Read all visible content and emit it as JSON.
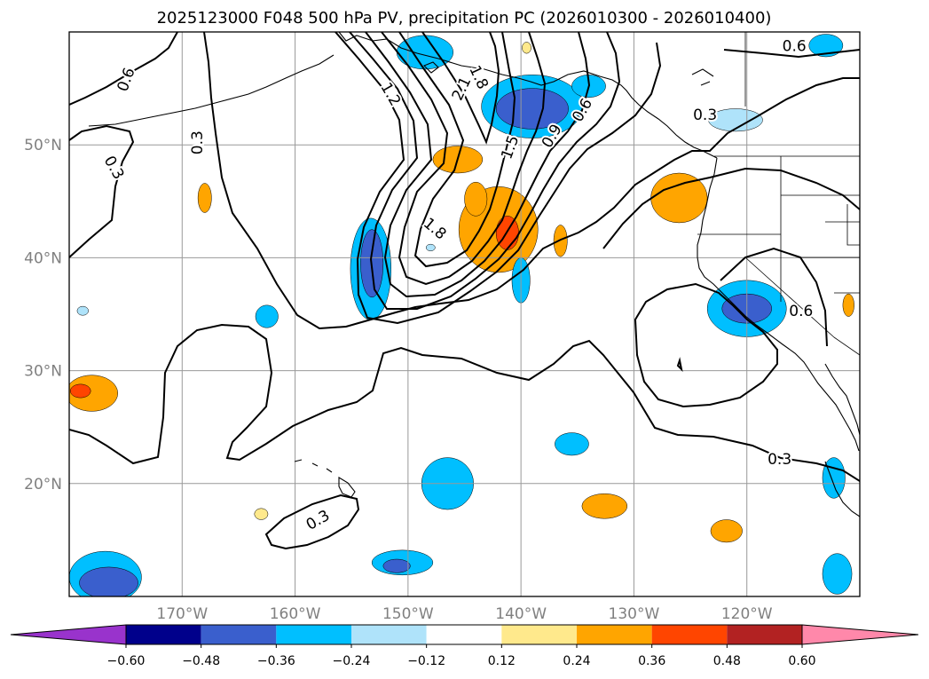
{
  "chart_data": {
    "type": "contour_map",
    "title": "2025123000 F048 500 hPa PV, precipitation PC (2026010300 - 2026010400)",
    "projection": "PlateCarree",
    "lon_range": [
      -180,
      -110
    ],
    "lat_range": [
      10,
      60
    ],
    "x_ticks": [
      {
        "lon": -170,
        "label": "170°W"
      },
      {
        "lon": -160,
        "label": "160°W"
      },
      {
        "lon": -150,
        "label": "150°W"
      },
      {
        "lon": -140,
        "label": "140°W"
      },
      {
        "lon": -130,
        "label": "130°W"
      },
      {
        "lon": -120,
        "label": "120°W"
      }
    ],
    "y_ticks": [
      {
        "lat": 20,
        "label": "20°N"
      },
      {
        "lat": 30,
        "label": "30°N"
      },
      {
        "lat": 40,
        "label": "40°N"
      },
      {
        "lat": 50,
        "label": "50°N"
      }
    ],
    "grid": true,
    "pv_contour_levels": [
      0.3,
      0.6,
      0.9,
      1.2,
      1.5,
      1.8,
      2.1
    ],
    "pv_contour_labels": [
      {
        "text": "0.6",
        "lon": -175.0,
        "lat": 55.8,
        "rot": -70
      },
      {
        "text": "0.3",
        "lon": -168.7,
        "lat": 50.2,
        "rot": -90
      },
      {
        "text": "0.3",
        "lon": -176.0,
        "lat": 48.0,
        "rot": 60
      },
      {
        "text": "1.2",
        "lon": -151.5,
        "lat": 54.5,
        "rot": 60
      },
      {
        "text": "2.1",
        "lon": -145.3,
        "lat": 55.0,
        "rot": -65
      },
      {
        "text": "1.8",
        "lon": -143.7,
        "lat": 56.0,
        "rot": 65
      },
      {
        "text": "1.5",
        "lon": -141.0,
        "lat": 49.8,
        "rot": -70
      },
      {
        "text": "0.9",
        "lon": -137.3,
        "lat": 50.8,
        "rot": -60
      },
      {
        "text": "0.6",
        "lon": -134.6,
        "lat": 53.1,
        "rot": -60
      },
      {
        "text": "1.8",
        "lon": -147.6,
        "lat": 42.6,
        "rot": 40
      },
      {
        "text": "0.3",
        "lon": -123.7,
        "lat": 52.7,
        "rot": 0
      },
      {
        "text": "0.6",
        "lon": -115.8,
        "lat": 58.8,
        "rot": 0
      },
      {
        "text": "0.6",
        "lon": -115.2,
        "lat": 35.3,
        "rot": 0
      },
      {
        "text": "0.3",
        "lon": -117.1,
        "lat": 22.2,
        "rot": 0
      },
      {
        "text": "0.3",
        "lon": -158.0,
        "lat": 16.8,
        "rot": -30
      }
    ],
    "precip_pc_blobs": [
      {
        "lon": -142.0,
        "lat": 42.5,
        "rx": 3.5,
        "ry": 3.8,
        "level": 0.24
      },
      {
        "lon": -141.2,
        "lat": 42.2,
        "rx": 1.0,
        "ry": 1.5,
        "level": 0.36
      },
      {
        "lon": -145.6,
        "lat": 48.7,
        "rx": 2.2,
        "ry": 1.2,
        "level": 0.24
      },
      {
        "lon": -144.0,
        "lat": 45.2,
        "rx": 1.0,
        "ry": 1.5,
        "level": 0.24
      },
      {
        "lon": -126.0,
        "lat": 45.3,
        "rx": 2.5,
        "ry": 2.2,
        "level": 0.24
      },
      {
        "lon": -168.0,
        "lat": 45.3,
        "rx": 0.6,
        "ry": 1.3,
        "level": 0.24
      },
      {
        "lon": -136.5,
        "lat": 41.5,
        "rx": 0.6,
        "ry": 1.4,
        "level": 0.24
      },
      {
        "lon": -178.0,
        "lat": 28.0,
        "rx": 2.3,
        "ry": 1.6,
        "level": 0.24
      },
      {
        "lon": -179.0,
        "lat": 28.2,
        "rx": 0.9,
        "ry": 0.6,
        "level": 0.36
      },
      {
        "lon": -132.6,
        "lat": 18.0,
        "rx": 2.0,
        "ry": 1.1,
        "level": 0.24
      },
      {
        "lon": -121.8,
        "lat": 15.8,
        "rx": 1.4,
        "ry": 1.0,
        "level": 0.24
      },
      {
        "lon": -163.0,
        "lat": 17.3,
        "rx": 0.6,
        "ry": 0.5,
        "level": 0.12
      },
      {
        "lon": -139.5,
        "lat": 58.6,
        "rx": 0.4,
        "ry": 0.5,
        "level": 0.12
      },
      {
        "lon": -111.0,
        "lat": 35.8,
        "rx": 0.5,
        "ry": 1.0,
        "level": 0.24
      },
      {
        "lon": -139.0,
        "lat": 53.4,
        "rx": 4.5,
        "ry": 2.8,
        "level": -0.36
      },
      {
        "lon": -139.0,
        "lat": 53.2,
        "rx": 3.2,
        "ry": 1.8,
        "level": -0.48
      },
      {
        "lon": -134.0,
        "lat": 55.2,
        "rx": 1.5,
        "ry": 1.0,
        "level": -0.36
      },
      {
        "lon": -148.5,
        "lat": 58.2,
        "rx": 2.5,
        "ry": 1.5,
        "level": -0.36
      },
      {
        "lon": -153.3,
        "lat": 39.0,
        "rx": 1.8,
        "ry": 4.5,
        "level": -0.36
      },
      {
        "lon": -153.2,
        "lat": 39.5,
        "rx": 1.0,
        "ry": 3.0,
        "level": -0.48
      },
      {
        "lon": -140.0,
        "lat": 38.0,
        "rx": 0.8,
        "ry": 2.0,
        "level": -0.36
      },
      {
        "lon": -120.0,
        "lat": 35.5,
        "rx": 3.5,
        "ry": 2.5,
        "level": -0.36
      },
      {
        "lon": -120.0,
        "lat": 35.5,
        "rx": 2.2,
        "ry": 1.3,
        "level": -0.48
      },
      {
        "lon": -146.5,
        "lat": 20.0,
        "rx": 2.3,
        "ry": 2.3,
        "level": -0.36
      },
      {
        "lon": -150.5,
        "lat": 13.0,
        "rx": 2.7,
        "ry": 1.1,
        "level": -0.36
      },
      {
        "lon": -151.0,
        "lat": 12.7,
        "rx": 1.2,
        "ry": 0.6,
        "level": -0.48
      },
      {
        "lon": -135.5,
        "lat": 23.5,
        "rx": 1.5,
        "ry": 1.0,
        "level": -0.36
      },
      {
        "lon": -176.8,
        "lat": 11.7,
        "rx": 3.2,
        "ry": 2.3,
        "level": -0.36
      },
      {
        "lon": -176.5,
        "lat": 11.2,
        "rx": 2.6,
        "ry": 1.4,
        "level": -0.48
      },
      {
        "lon": -162.5,
        "lat": 34.8,
        "rx": 1.0,
        "ry": 1.0,
        "level": -0.36
      },
      {
        "lon": -112.3,
        "lat": 20.5,
        "rx": 1.0,
        "ry": 1.8,
        "level": -0.36
      },
      {
        "lon": -112.0,
        "lat": 12.0,
        "rx": 1.3,
        "ry": 1.8,
        "level": -0.36
      },
      {
        "lon": -121.0,
        "lat": 52.2,
        "rx": 2.4,
        "ry": 1.0,
        "level": -0.24
      },
      {
        "lon": -113.0,
        "lat": 58.8,
        "rx": 1.5,
        "ry": 1.0,
        "level": -0.36
      },
      {
        "lon": -178.8,
        "lat": 35.3,
        "rx": 0.5,
        "ry": 0.4,
        "level": -0.24
      },
      {
        "lon": -148.0,
        "lat": 40.9,
        "rx": 0.4,
        "ry": 0.3,
        "level": -0.24
      }
    ],
    "colorbar": {
      "ticks": [
        "−0.60",
        "−0.48",
        "−0.36",
        "−0.24",
        "−0.12",
        "0.12",
        "0.24",
        "0.36",
        "0.48",
        "0.60"
      ],
      "colors": [
        "#9933cc",
        "#00008b",
        "#3a5fcd",
        "#00bfff",
        "#afe3fa",
        "#ffffff",
        "#ffe98c",
        "#ffa500",
        "#ff4500",
        "#b22222",
        "#ff88aa"
      ],
      "extend": "both"
    },
    "level_colors": {
      "-0.48": "#3a5fcd",
      "-0.36": "#00bfff",
      "-0.24": "#afe3fa",
      "0.12": "#ffe98c",
      "0.24": "#ffa500",
      "0.36": "#ff4500"
    }
  }
}
